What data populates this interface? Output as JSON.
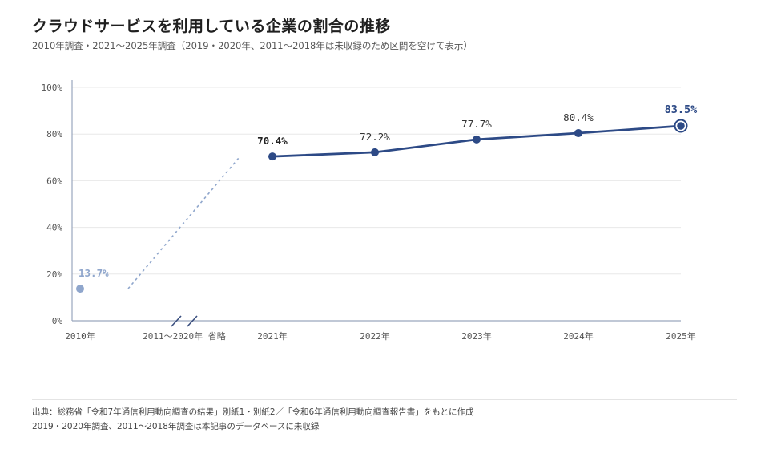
{
  "header": {
    "title": "クラウドサービスを利用している企業の割合の推移",
    "subtitle": "2010年調査・2021～2025年調査（2019・2020年、2011～2018年は未収録のため区間を空けて表示）"
  },
  "footer": {
    "source": "出典：総務省「令和7年通信利用動向調査の結果」別紙1・別紙2／「令和6年通信利用動向調査報告書」をもとに作成",
    "note": "2019・2020年調査、2011～2018年調査は本記事のデータベースに未収録"
  },
  "chart_data": {
    "type": "line",
    "title": "クラウドサービスを利用している企業の割合の推移",
    "ylim": [
      0,
      100
    ],
    "y_ticks": [
      "0%",
      "20%",
      "40%",
      "60%",
      "80%",
      "100%"
    ],
    "y_tick_values": [
      0,
      20,
      40,
      60,
      80,
      100
    ],
    "gap_label": "2011～2020年 省略",
    "grid": true,
    "series": [
      {
        "values": [
          {
            "x": "2010年",
            "y": 13.7,
            "label": "13.7%"
          },
          {
            "x": "2021年",
            "y": 70.4,
            "label": "70.4%"
          },
          {
            "x": "2022年",
            "y": 72.2,
            "label": "72.2%"
          },
          {
            "x": "2023年",
            "y": 77.7,
            "label": "77.7%"
          },
          {
            "x": "2024年",
            "y": 80.4,
            "label": "80.4%"
          },
          {
            "x": "2025年",
            "y": 83.5,
            "label": "83.5%"
          }
        ]
      }
    ],
    "colors": {
      "line": "#2d4a86",
      "early_point": "#8fa6cc",
      "grid": "#e8e8e8",
      "axis": "#9aa6bd"
    }
  }
}
